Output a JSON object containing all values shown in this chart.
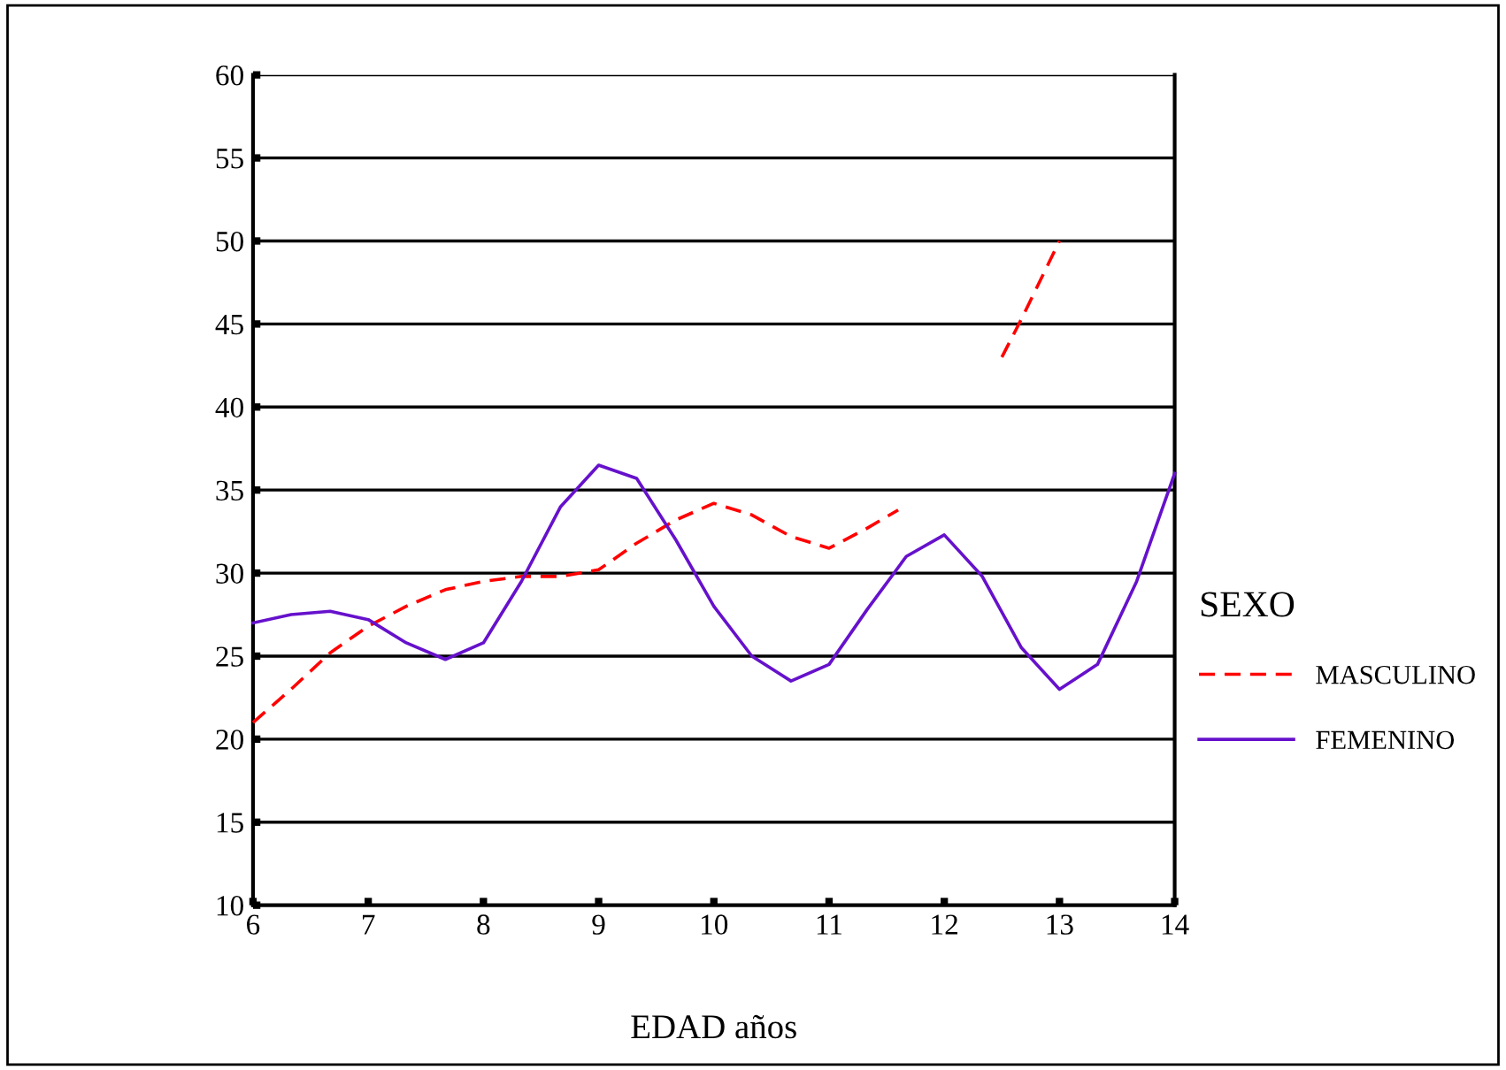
{
  "chart_data": {
    "type": "line",
    "xlabel": "EDAD años",
    "legend_title": "SEXO",
    "xlim": [
      6,
      14
    ],
    "xticks": [
      6,
      7,
      8,
      9,
      10,
      11,
      12,
      13,
      14
    ],
    "ylim": [
      10,
      60
    ],
    "yticks": [
      10,
      15,
      20,
      25,
      30,
      35,
      40,
      45,
      50,
      55,
      60
    ],
    "grid": "y",
    "legend": "right",
    "series": [
      {
        "name": "MASCULINO",
        "color": "#ff0000",
        "line_style": "dashed",
        "x": [
          6,
          6.33,
          6.67,
          7,
          7.33,
          7.67,
          8,
          8.33,
          8.67,
          9,
          9.33,
          9.67,
          10,
          10.33,
          10.67,
          11,
          11.33,
          11.6,
          12,
          12.5,
          12.67,
          13
        ],
        "values": [
          21,
          23,
          25.2,
          26.8,
          28,
          29,
          29.5,
          29.8,
          29.8,
          30.2,
          31.8,
          33.2,
          34.2,
          33.5,
          32.2,
          31.5,
          32.7,
          33.8,
          null,
          43,
          45.3,
          50
        ]
      },
      {
        "name": "FEMENINO",
        "color": "#6611cc",
        "line_style": "solid",
        "x": [
          6,
          6.33,
          6.67,
          7,
          7.33,
          7.67,
          8,
          8.33,
          8.67,
          9,
          9.33,
          9.67,
          10,
          10.33,
          10.67,
          11,
          11.33,
          11.67,
          12,
          12.33,
          12.67,
          13,
          13.33,
          13.67,
          14
        ],
        "values": [
          27,
          27.5,
          27.7,
          27.2,
          25.8,
          24.8,
          25.8,
          29.5,
          34,
          36.5,
          35.7,
          32,
          28,
          25,
          23.5,
          24.5,
          27.8,
          31,
          32.3,
          29.8,
          25.5,
          23,
          24.5,
          29.5,
          36
        ]
      }
    ]
  }
}
